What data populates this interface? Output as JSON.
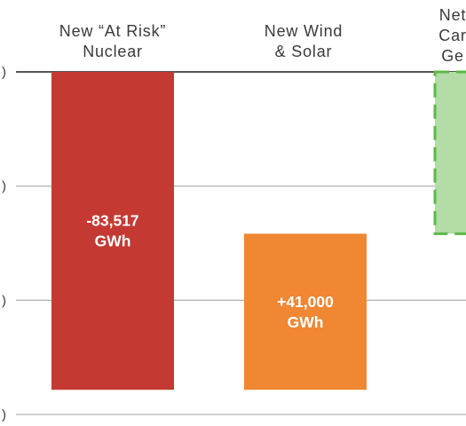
{
  "chart_data": {
    "type": "bar",
    "chart_subtype": "waterfall",
    "title": "",
    "xlabel": "",
    "ylabel": "",
    "grid": true,
    "categories": [
      [
        "New “At Risk”",
        "Nuclear"
      ],
      [
        "New Wind",
        "& Solar"
      ],
      [
        "Net",
        "Car",
        "Ge"
      ]
    ],
    "bars": [
      {
        "start": 0,
        "end": -83517,
        "label_lines": [
          "-83,517",
          "GWh"
        ],
        "color": "#c43a33",
        "style": "solid"
      },
      {
        "start": -83517,
        "end": -42517,
        "label_lines": [
          "+41,000",
          "GWh"
        ],
        "color": "#ef8733",
        "style": "solid"
      },
      {
        "start": 0,
        "end": -42517,
        "label_lines": [],
        "color": "#b3dca6",
        "border_color": "#5cb848",
        "style": "dashed"
      }
    ],
    "y_gridlines": [
      0,
      -30000,
      -60000,
      -90000
    ],
    "y_tick_labels": [
      ")",
      ")",
      ")",
      ")"
    ],
    "ylim": [
      -90000,
      0
    ]
  }
}
